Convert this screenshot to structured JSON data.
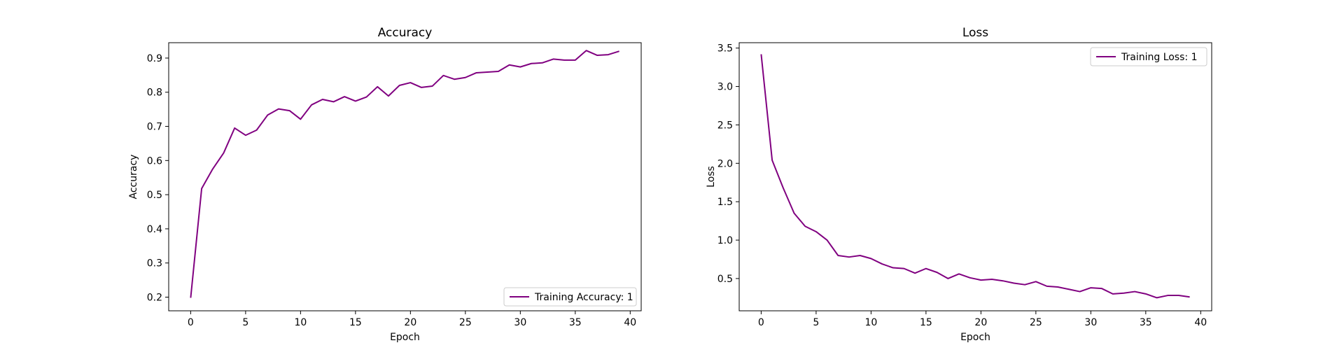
{
  "chart_data": [
    {
      "type": "line",
      "title": "Accuracy",
      "xlabel": "Epoch",
      "ylabel": "Accuracy",
      "xlim": [
        -2,
        41
      ],
      "ylim": [
        0.16,
        0.945
      ],
      "xticks": [
        "0",
        "5",
        "10",
        "15",
        "20",
        "25",
        "30",
        "35",
        "40"
      ],
      "yticks": [
        "0.2",
        "0.3",
        "0.4",
        "0.5",
        "0.6",
        "0.7",
        "0.8",
        "0.9"
      ],
      "grid": false,
      "legend_position": "lower-right",
      "series": [
        {
          "name": "Training Accuracy: 1",
          "color": "#800080",
          "x": [
            0,
            1,
            2,
            3,
            4,
            5,
            6,
            7,
            8,
            9,
            10,
            11,
            12,
            13,
            14,
            15,
            16,
            17,
            18,
            19,
            20,
            21,
            22,
            23,
            24,
            25,
            26,
            27,
            28,
            29,
            30,
            31,
            32,
            33,
            34,
            35,
            36,
            37,
            38,
            39
          ],
          "y": [
            0.198,
            0.518,
            0.575,
            0.622,
            0.695,
            0.674,
            0.689,
            0.733,
            0.751,
            0.746,
            0.721,
            0.763,
            0.779,
            0.772,
            0.787,
            0.774,
            0.786,
            0.816,
            0.789,
            0.82,
            0.828,
            0.814,
            0.818,
            0.849,
            0.838,
            0.843,
            0.857,
            0.859,
            0.861,
            0.88,
            0.874,
            0.884,
            0.886,
            0.897,
            0.894,
            0.894,
            0.922,
            0.908,
            0.91,
            0.92
          ]
        }
      ]
    },
    {
      "type": "line",
      "title": "Loss",
      "xlabel": "Epoch",
      "ylabel": "Loss",
      "xlim": [
        -2,
        41
      ],
      "ylim": [
        0.08,
        3.57
      ],
      "xticks": [
        "0",
        "5",
        "10",
        "15",
        "20",
        "25",
        "30",
        "35",
        "40"
      ],
      "yticks": [
        "0.5",
        "1.0",
        "1.5",
        "2.0",
        "2.5",
        "3.0",
        "3.5"
      ],
      "grid": false,
      "legend_position": "upper-right",
      "series": [
        {
          "name": "Training Loss: 1",
          "color": "#800080",
          "x": [
            0,
            1,
            2,
            3,
            4,
            5,
            6,
            7,
            8,
            9,
            10,
            11,
            12,
            13,
            14,
            15,
            16,
            17,
            18,
            19,
            20,
            21,
            22,
            23,
            24,
            25,
            26,
            27,
            28,
            29,
            30,
            31,
            32,
            33,
            34,
            35,
            36,
            37,
            38,
            39
          ],
          "y": [
            3.42,
            2.04,
            1.68,
            1.35,
            1.18,
            1.11,
            1.0,
            0.8,
            0.78,
            0.8,
            0.76,
            0.69,
            0.64,
            0.63,
            0.57,
            0.63,
            0.58,
            0.5,
            0.56,
            0.51,
            0.48,
            0.49,
            0.47,
            0.44,
            0.42,
            0.46,
            0.4,
            0.39,
            0.36,
            0.33,
            0.38,
            0.37,
            0.3,
            0.31,
            0.33,
            0.3,
            0.25,
            0.28,
            0.28,
            0.26
          ]
        }
      ]
    }
  ]
}
